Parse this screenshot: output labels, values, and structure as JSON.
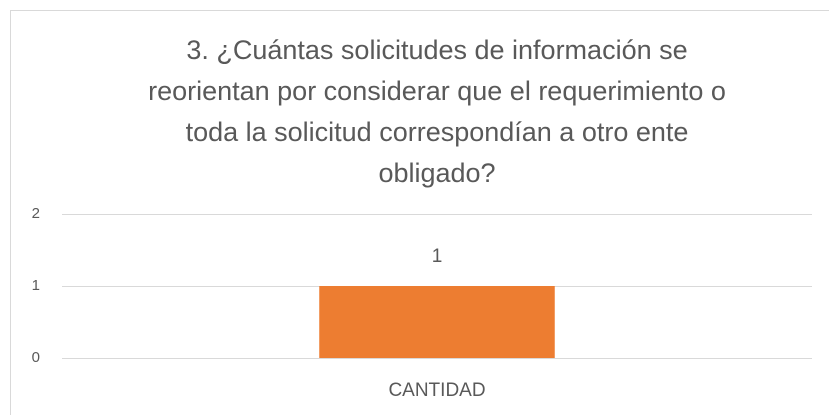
{
  "chart_data": {
    "type": "bar",
    "title": "3. ¿Cuántas solicitudes de información se reorientan por considerar que el requerimiento o toda la solicitud correspondían a otro ente obligado?",
    "categories": [
      "CANTIDAD"
    ],
    "values": [
      1
    ],
    "color": "#ed7d31",
    "ylim": [
      0,
      2
    ],
    "yticks": [
      0,
      1,
      2
    ],
    "grid": true
  }
}
